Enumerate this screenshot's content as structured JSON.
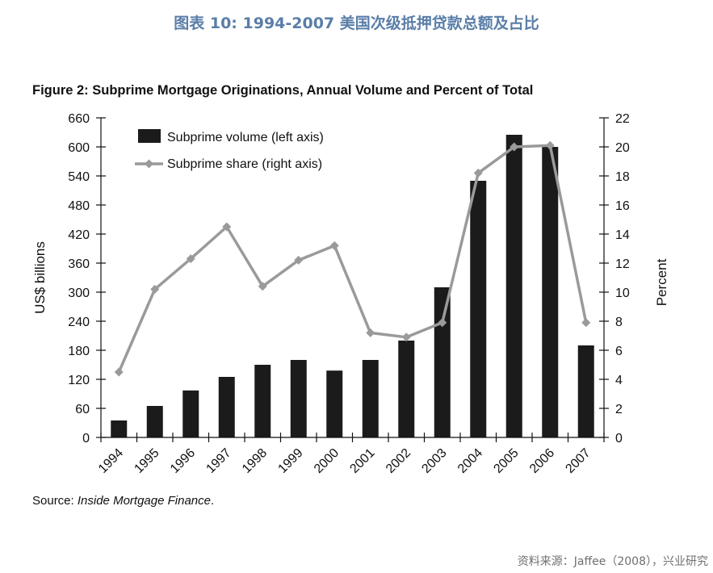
{
  "header": {
    "title": "图表 10: 1994-2007 美国次级抵押贷款总额及占比"
  },
  "footer": {
    "source_prefix": "Source: ",
    "source_name": "Inside Mortgage Finance",
    "source_suffix": ".",
    "credit": "资料来源：Jaffee（2008），兴业研究"
  },
  "chart_data": {
    "type": "bar+line",
    "title": "Figure 2: Subprime Mortgage Originations, Annual Volume and Percent of Total",
    "categories": [
      "1994",
      "1995",
      "1996",
      "1997",
      "1998",
      "1999",
      "2000",
      "2001",
      "2002",
      "2003",
      "2004",
      "2005",
      "2006",
      "2007"
    ],
    "series": [
      {
        "name": "Subprime volume (left axis)",
        "type": "bar",
        "axis": "left",
        "values": [
          35,
          65,
          97,
          125,
          150,
          160,
          138,
          160,
          200,
          310,
          530,
          625,
          600,
          190
        ]
      },
      {
        "name": "Subprime share (right axis)",
        "type": "line",
        "axis": "right",
        "values": [
          4.5,
          10.2,
          12.3,
          14.5,
          10.4,
          12.2,
          13.2,
          7.2,
          6.9,
          7.9,
          18.2,
          20.0,
          20.1,
          7.9
        ]
      }
    ],
    "ylabel_left": "US$ billions",
    "ylabel_right": "Percent",
    "ylim_left": [
      0,
      660
    ],
    "ylim_right": [
      0,
      22
    ],
    "yticks_left": [
      0,
      60,
      120,
      180,
      240,
      300,
      360,
      420,
      480,
      540,
      600,
      660
    ],
    "yticks_right": [
      0,
      2,
      4,
      6,
      8,
      10,
      12,
      14,
      16,
      18,
      20,
      22
    ],
    "grid": false,
    "legend_position": "top-left",
    "colors": {
      "bar": "#1b1b1b",
      "line": "#9a9a9a",
      "axis": "#111111"
    }
  }
}
